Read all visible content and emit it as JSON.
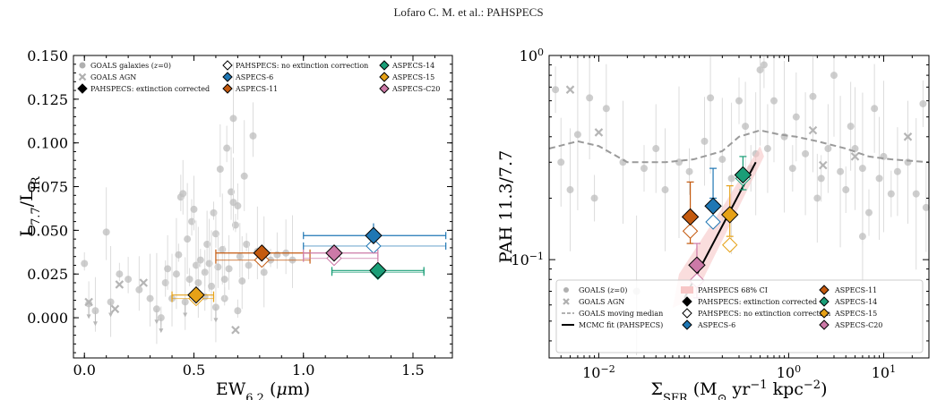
{
  "header": "Lofaro C. M. et al.: PAHSPECS",
  "chart_data": [
    {
      "type": "scatter",
      "title": "",
      "xlabel": "EW6.2 (μm)",
      "ylabel": "L7.7/LIR",
      "xlim": [
        -0.05,
        1.68
      ],
      "ylim": [
        -0.023,
        0.15
      ],
      "xticks": [
        "0.0",
        "0.5",
        "1.0",
        "1.5"
      ],
      "yticks": [
        "0.000",
        "0.025",
        "0.050",
        "0.075",
        "0.100",
        "0.125",
        "0.150"
      ],
      "legend_position": "top",
      "legend": [
        {
          "label": "GOALS galaxies (z=0)",
          "marker": "circle",
          "color": "#b0b0b0"
        },
        {
          "label": "GOALS AGN",
          "marker": "x",
          "color": "#b0b0b0"
        },
        {
          "label": "PAHSPECS: extinction corrected",
          "marker": "diamond-filled",
          "color": "#000000"
        },
        {
          "label": "PAHSPECS: no extinction correction",
          "marker": "diamond-open",
          "color": "#000000"
        },
        {
          "label": "ASPECS-6",
          "marker": "diamond-filled",
          "color": "#1f77b4"
        },
        {
          "label": "ASPECS-11",
          "marker": "diamond-filled",
          "color": "#c45a0f"
        },
        {
          "label": "ASPECS-14",
          "marker": "diamond-filled",
          "color": "#1a9e77"
        },
        {
          "label": "ASPECS-15",
          "marker": "diamond-filled",
          "color": "#e6a117"
        },
        {
          "label": "ASPECS-C20",
          "marker": "diamond-filled",
          "color": "#cc79a7"
        }
      ],
      "pahspecs": [
        {
          "name": "ASPECS-6",
          "color": "#1f77b4",
          "x": 1.32,
          "y_corr": 0.047,
          "y_corr_err": 0.007,
          "y_nocorr": 0.041,
          "xerr": [
            0.32,
            0.33
          ]
        },
        {
          "name": "ASPECS-11",
          "color": "#c45a0f",
          "x": 0.81,
          "y_corr": 0.037,
          "y_corr_err": 0.004,
          "y_nocorr": 0.033,
          "xerr": [
            0.21,
            0.22
          ]
        },
        {
          "name": "ASPECS-14",
          "color": "#1a9e77",
          "x": 1.34,
          "y_corr": 0.027,
          "y_corr_err": 0.004,
          "y_nocorr": 0.026,
          "xerr": [
            0.21,
            0.21
          ]
        },
        {
          "name": "ASPECS-15",
          "color": "#e6a117",
          "x": 0.51,
          "y_corr": 0.013,
          "y_corr_err": 0.003,
          "y_nocorr": 0.011,
          "xerr": [
            0.11,
            0.08
          ]
        },
        {
          "name": "ASPECS-C20",
          "color": "#cc79a7",
          "x": 1.14,
          "y_corr": 0.037,
          "y_corr_err": 0.003,
          "y_nocorr": 0.034,
          "xerr": [
            0.14,
            0.2
          ]
        }
      ],
      "goals_galaxies": [
        [
          0.0,
          0.031
        ],
        [
          0.02,
          0.008
        ],
        [
          0.05,
          0.004
        ],
        [
          0.1,
          0.049
        ],
        [
          0.12,
          0.009
        ],
        [
          0.16,
          0.025
        ],
        [
          0.2,
          0.022
        ],
        [
          0.25,
          0.016
        ],
        [
          0.3,
          0.011
        ],
        [
          0.33,
          0.005
        ],
        [
          0.35,
          0.0
        ],
        [
          0.37,
          0.02
        ],
        [
          0.38,
          0.028
        ],
        [
          0.4,
          0.011
        ],
        [
          0.42,
          0.025
        ],
        [
          0.43,
          0.036
        ],
        [
          0.44,
          0.069
        ],
        [
          0.45,
          0.071
        ],
        [
          0.46,
          0.009
        ],
        [
          0.47,
          0.045
        ],
        [
          0.48,
          0.022
        ],
        [
          0.49,
          0.055
        ],
        [
          0.5,
          0.062
        ],
        [
          0.51,
          0.03
        ],
        [
          0.52,
          0.02
        ],
        [
          0.53,
          0.033
        ],
        [
          0.55,
          0.026
        ],
        [
          0.56,
          0.042
        ],
        [
          0.57,
          0.031
        ],
        [
          0.58,
          0.018
        ],
        [
          0.59,
          0.06
        ],
        [
          0.6,
          0.048
        ],
        [
          0.61,
          0.029
        ],
        [
          0.62,
          0.085
        ],
        [
          0.63,
          0.039
        ],
        [
          0.64,
          0.011
        ],
        [
          0.65,
          0.097
        ],
        [
          0.66,
          0.028
        ],
        [
          0.67,
          0.072
        ],
        [
          0.68,
          0.114
        ],
        [
          0.69,
          0.053
        ],
        [
          0.7,
          0.064
        ],
        [
          0.71,
          0.035
        ],
        [
          0.72,
          0.021
        ],
        [
          0.73,
          0.081
        ],
        [
          0.74,
          0.042
        ],
        [
          0.75,
          0.03
        ],
        [
          0.77,
          0.104
        ],
        [
          0.79,
          0.038
        ],
        [
          0.82,
          0.026
        ],
        [
          0.85,
          0.033
        ],
        [
          0.88,
          0.036
        ],
        [
          0.92,
          0.037
        ],
        [
          0.95,
          0.033
        ],
        [
          0.6,
          0.006
        ],
        [
          0.7,
          0.004
        ],
        [
          0.55,
          0.012
        ],
        [
          0.64,
          0.022
        ],
        [
          0.68,
          0.066
        ]
      ],
      "goals_agn": [
        [
          0.02,
          0.009
        ],
        [
          0.14,
          0.005
        ],
        [
          0.16,
          0.019
        ],
        [
          0.27,
          0.02
        ],
        [
          0.69,
          -0.007
        ]
      ]
    },
    {
      "type": "scatter",
      "title": "",
      "xlabel": "ΣSFR (M⊙ yr−1 kpc−2)",
      "ylabel": "PAH 11.3/7.7",
      "xscale": "log",
      "yscale": "log",
      "xlim": [
        0.003,
        30
      ],
      "ylim": [
        0.033,
        1.0
      ],
      "xticks": [
        "10−2",
        "100",
        "101"
      ],
      "yticks": [
        "10−1",
        "100"
      ],
      "legend_position": "bottom",
      "legend": [
        {
          "label": "GOALS (z=0)",
          "marker": "circle",
          "color": "#b0b0b0"
        },
        {
          "label": "GOALS AGN",
          "marker": "x",
          "color": "#b0b0b0"
        },
        {
          "label": "GOALS moving median",
          "marker": "dashed-line",
          "color": "#999999"
        },
        {
          "label": "MCMC fit (PAHSPECS)",
          "marker": "line",
          "color": "#000000"
        },
        {
          "label": "PAHSPECS 68% CI",
          "marker": "band",
          "color": "#f7c6c6"
        },
        {
          "label": "PAHSPECS: extinction corrected",
          "marker": "diamond-filled",
          "color": "#000000"
        },
        {
          "label": "PAHSPECS: no extinction correction",
          "marker": "diamond-open",
          "color": "#000000"
        },
        {
          "label": "ASPECS-6",
          "marker": "diamond-filled",
          "color": "#1f77b4"
        },
        {
          "label": "ASPECS-11",
          "marker": "diamond-filled",
          "color": "#c45a0f"
        },
        {
          "label": "ASPECS-14",
          "marker": "diamond-filled",
          "color": "#1a9e77"
        },
        {
          "label": "ASPECS-15",
          "marker": "diamond-filled",
          "color": "#e6a117"
        },
        {
          "label": "ASPECS-C20",
          "marker": "diamond-filled",
          "color": "#cc79a7"
        }
      ],
      "pahspecs": [
        {
          "name": "ASPECS-6",
          "color": "#1f77b4",
          "x": 0.16,
          "y_corr": 0.183,
          "y_corr_err": [
            0.2,
            0.28
          ],
          "y_nocorr": 0.153
        },
        {
          "name": "ASPECS-11",
          "color": "#c45a0f",
          "x": 0.092,
          "y_corr": 0.162,
          "y_corr_err": [
            0.12,
            0.24
          ],
          "y_nocorr": 0.138
        },
        {
          "name": "ASPECS-14",
          "color": "#1a9e77",
          "x": 0.33,
          "y_corr": 0.26,
          "y_corr_err": [
            0.22,
            0.32
          ],
          "y_nocorr": 0.25
        },
        {
          "name": "ASPECS-15",
          "color": "#e6a117",
          "x": 0.24,
          "y_corr": 0.166,
          "y_corr_err": [
            0.13,
            0.23
          ],
          "y_nocorr": 0.118
        },
        {
          "name": "ASPECS-C20",
          "color": "#cc79a7",
          "x": 0.108,
          "y_corr": 0.094,
          "y_corr_err": [
            0.065,
            0.12
          ],
          "y_nocorr": 0.079
        }
      ],
      "mcmc_fit": [
        [
          0.08,
          0.065
        ],
        [
          0.45,
          0.3
        ]
      ],
      "moving_median": [
        [
          0.003,
          0.35
        ],
        [
          0.006,
          0.38
        ],
        [
          0.01,
          0.36
        ],
        [
          0.02,
          0.3
        ],
        [
          0.05,
          0.3
        ],
        [
          0.1,
          0.31
        ],
        [
          0.2,
          0.34
        ],
        [
          0.3,
          0.4
        ],
        [
          0.5,
          0.43
        ],
        [
          0.8,
          0.41
        ],
        [
          1.2,
          0.4
        ],
        [
          2,
          0.38
        ],
        [
          4,
          0.35
        ],
        [
          7,
          0.32
        ],
        [
          12,
          0.31
        ],
        [
          30,
          0.3
        ]
      ],
      "goals_galaxies": [
        [
          0.0035,
          0.68
        ],
        [
          0.004,
          0.3
        ],
        [
          0.005,
          0.22
        ],
        [
          0.006,
          0.41
        ],
        [
          0.009,
          0.2
        ],
        [
          0.012,
          0.55
        ],
        [
          0.018,
          0.3
        ],
        [
          0.025,
          0.07
        ],
        [
          0.03,
          0.28
        ],
        [
          0.04,
          0.35
        ],
        [
          0.05,
          0.22
        ],
        [
          0.07,
          0.3
        ],
        [
          0.09,
          0.27
        ],
        [
          0.13,
          0.38
        ],
        [
          0.2,
          0.31
        ],
        [
          0.25,
          0.25
        ],
        [
          0.3,
          0.6
        ],
        [
          0.35,
          0.45
        ],
        [
          0.45,
          0.33
        ],
        [
          0.5,
          0.85
        ],
        [
          0.55,
          0.9
        ],
        [
          0.6,
          0.35
        ],
        [
          0.7,
          0.6
        ],
        [
          0.9,
          0.4
        ],
        [
          1.1,
          0.28
        ],
        [
          1.2,
          0.5
        ],
        [
          1.5,
          0.33
        ],
        [
          1.8,
          0.63
        ],
        [
          2.2,
          0.25
        ],
        [
          2.6,
          0.35
        ],
        [
          3,
          0.8
        ],
        [
          3.5,
          0.27
        ],
        [
          4,
          0.22
        ],
        [
          4.5,
          0.45
        ],
        [
          5,
          0.35
        ],
        [
          6,
          0.28
        ],
        [
          7,
          0.17
        ],
        [
          8,
          0.55
        ],
        [
          9,
          0.25
        ],
        [
          10,
          0.32
        ],
        [
          12,
          0.21
        ],
        [
          14,
          0.27
        ],
        [
          18,
          0.3
        ],
        [
          22,
          0.21
        ],
        [
          26,
          0.58
        ],
        [
          28,
          0.18
        ],
        [
          0.008,
          0.62
        ],
        [
          0.15,
          0.62
        ],
        [
          0.4,
          0.28
        ],
        [
          2,
          0.2
        ],
        [
          6,
          0.13
        ]
      ],
      "goals_agn": [
        [
          0.005,
          0.68
        ],
        [
          0.01,
          0.42
        ],
        [
          1.8,
          0.43
        ],
        [
          2.3,
          0.29
        ],
        [
          5,
          0.32
        ],
        [
          18,
          0.4
        ]
      ]
    }
  ]
}
